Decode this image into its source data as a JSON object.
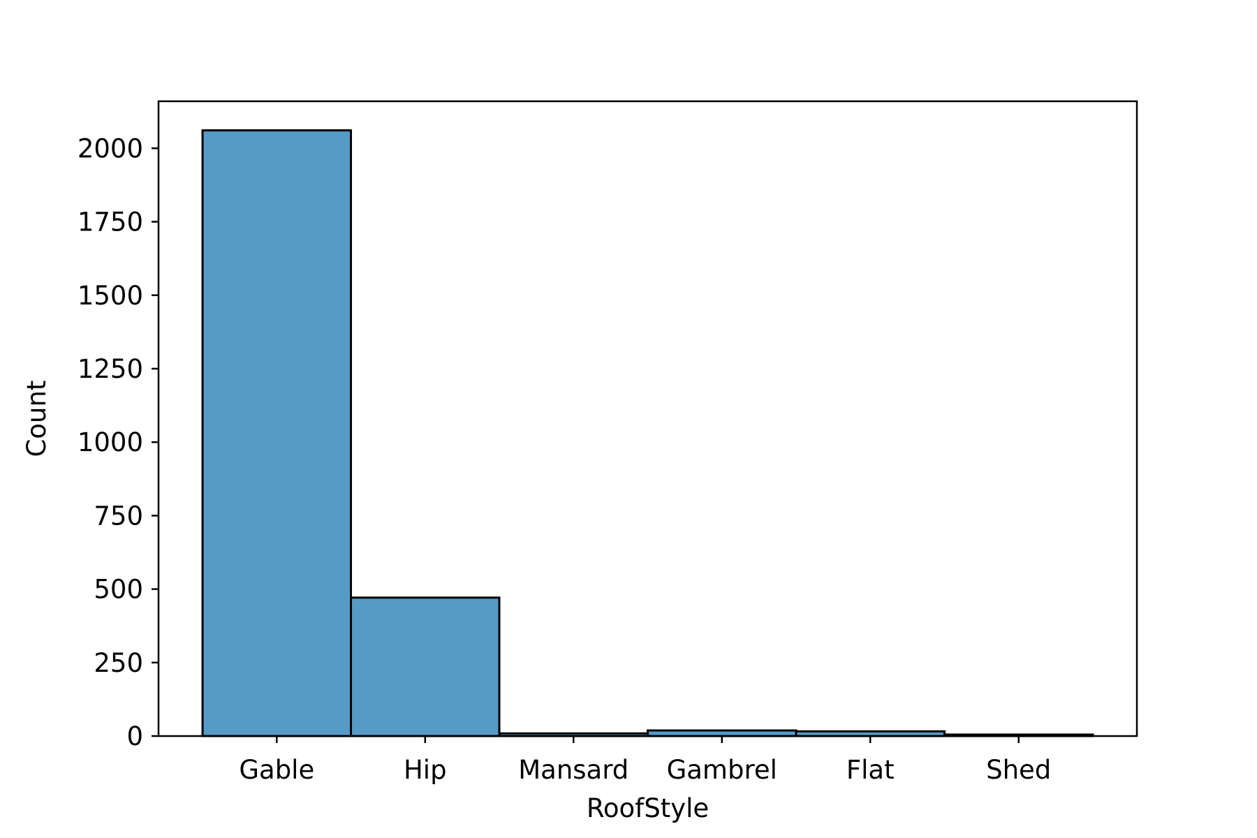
{
  "chart_data": {
    "type": "bar",
    "title": "",
    "xlabel": "RoofStyle",
    "ylabel": "Count",
    "categories": [
      "Gable",
      "Hip",
      "Mansard",
      "Gambrel",
      "Flat",
      "Shed"
    ],
    "values": [
      2061,
      471,
      9,
      19,
      16,
      5
    ],
    "ylim": [
      0,
      2160
    ],
    "yticks": [
      0,
      250,
      500,
      750,
      1000,
      1250,
      1500,
      1750,
      2000
    ],
    "grid": false,
    "bar_color": "#569bc8",
    "edge_color": "#000000"
  }
}
